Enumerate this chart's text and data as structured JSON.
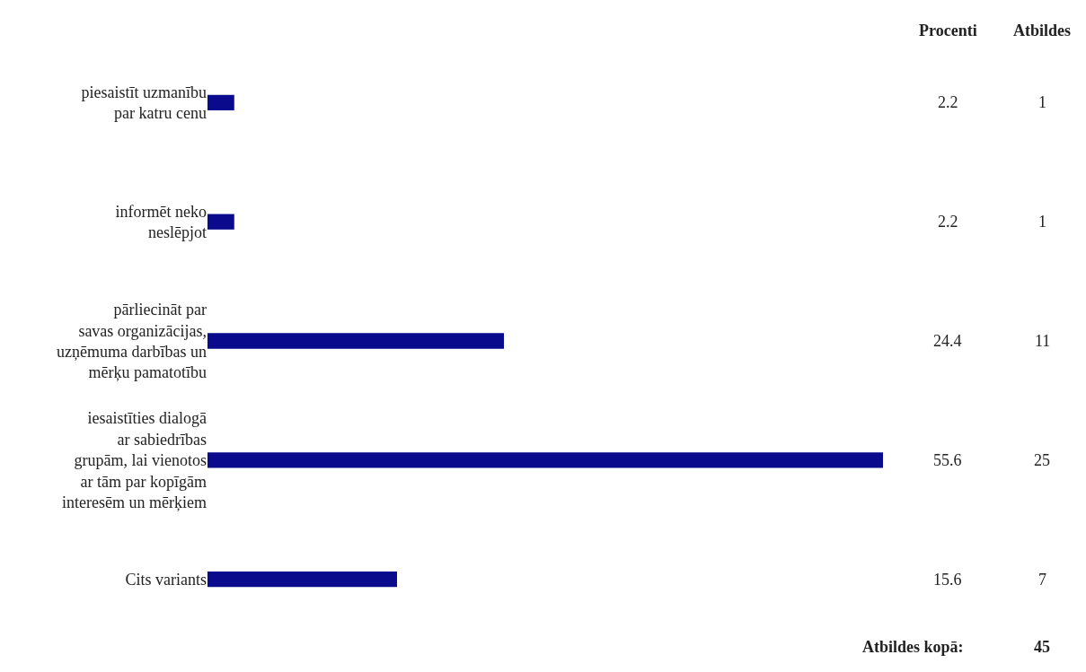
{
  "chart_data": {
    "type": "bar",
    "orientation": "horizontal",
    "categories": [
      "piesaistīt uzmanību par katru cenu",
      "informēt neko neslēpjot",
      "pārliecināt par savas organizācijas, uzņēmuma darbības un mērķu pamatotību",
      "iesaistīties dialogā ar sabiedrības grupām, lai vienotos ar tām par kopīgām interesēm un mērķiem",
      "Cits variants"
    ],
    "values": [
      2.2,
      2.2,
      24.4,
      55.6,
      15.6
    ],
    "color": "#0a0a8c",
    "data_labels": true,
    "annotations": [
      "Procenti",
      "Atbildes",
      "1",
      "1",
      "11",
      "25",
      "7",
      "Atbildes kopā:",
      "45"
    ]
  }
}
